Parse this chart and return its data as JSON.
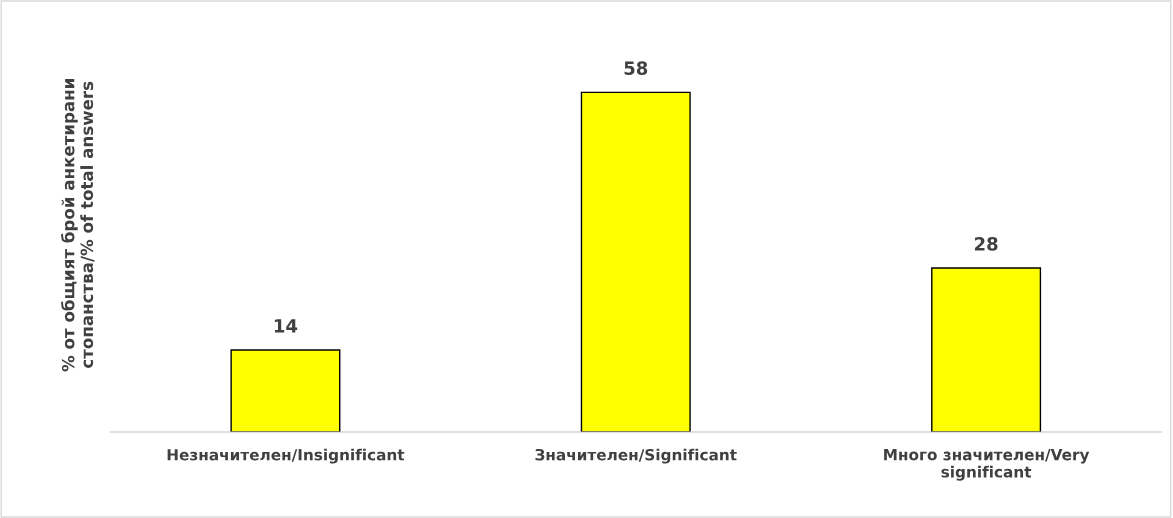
{
  "chart_data": {
    "type": "bar",
    "ylabel": "% от общият брой анкетирани стопанства/% of total answers",
    "categories": [
      "Незначителен/Insignificant",
      "Значителен/Significant",
      "Много значителен/Very significant"
    ],
    "values": [
      14,
      58,
      28
    ],
    "color": "#ffff00",
    "tick_labels": "x",
    "data_labels": true
  }
}
